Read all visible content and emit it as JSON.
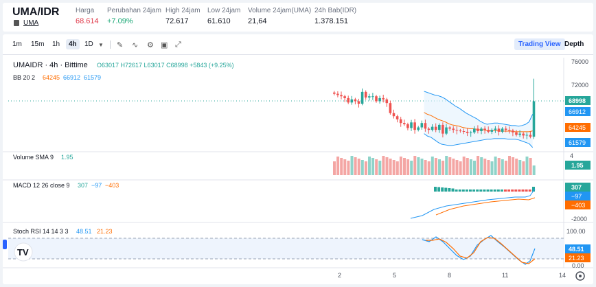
{
  "header": {
    "pair": "UMA/IDR",
    "sub": "UMA",
    "stats": [
      {
        "label": "Harga",
        "value": "68.614",
        "color": "#e0394a"
      },
      {
        "label": "Perubahan 24jam",
        "value": "+7.09%",
        "color": "#17a673"
      },
      {
        "label": "High 24jam",
        "value": "72.617",
        "color": "#131722"
      },
      {
        "label": "Low 24jam",
        "value": "61.610",
        "color": "#131722"
      },
      {
        "label": "Volume 24jam(UMA)",
        "value": "21,64",
        "color": "#131722"
      },
      {
        "label": "24h Bab(IDR)",
        "value": "1.378.151",
        "color": "#131722"
      }
    ]
  },
  "toolbar": {
    "timeframes": [
      "1m",
      "15m",
      "1h",
      "4h",
      "1D"
    ],
    "active": "4h",
    "views": [
      "Trading View",
      "Depth"
    ]
  },
  "legend": {
    "symbol": "UMAIDR · 4h · Bittime",
    "ohlc": "O63017 H72617 L63017 C68998 +5843 (+9.25%)",
    "bb_label": "BB 20 2",
    "bb_vals": [
      "64245",
      "66912",
      "61579"
    ],
    "vol_label": "Volume SMA 9",
    "vol_val": "1.95",
    "macd_label": "MACD 12 26 close 9",
    "macd_vals": [
      "307",
      "−97",
      "−403"
    ],
    "stoch_label": "Stoch RSI 14 14 3 3",
    "stoch_vals": [
      "48.51",
      "21.23"
    ]
  },
  "axis": {
    "price_ticks": [
      "76000",
      "72000"
    ],
    "vol_ticks": [
      "4"
    ],
    "macd_ticks": [
      "-2000"
    ],
    "stoch_ticks": [
      "100.00",
      "0.00"
    ],
    "x_ticks": [
      "2",
      "5",
      "8",
      "11",
      "14"
    ]
  },
  "badges": {
    "price": "68998",
    "bb_upper": "66912",
    "bb_mid": "64245",
    "bb_lower": "61579",
    "vol": "1.95",
    "macd": "307",
    "macd_signal": "−97",
    "macd_hist": "−403",
    "stoch_k": "48.51",
    "stoch_d": "21.23"
  },
  "colors": {
    "up": "#26a69a",
    "down": "#ef5350",
    "bb": "#2196f3",
    "orange": "#ff6d00",
    "accent": "#2962ff"
  },
  "chart_data": {
    "type": "candlestick",
    "closes": [
      70200,
      70000,
      69800,
      69500,
      68800,
      69300,
      69000,
      68600,
      70500,
      69600,
      69800,
      69800,
      69000,
      69500,
      69300,
      68700,
      67100,
      66600,
      66100,
      65500,
      65300,
      64700,
      65600,
      64400,
      64800,
      65500,
      64600,
      64400,
      64900,
      64400,
      65200,
      63800,
      64800,
      64600,
      64400,
      64300,
      64200,
      64100,
      63900,
      64000,
      64600,
      64200,
      64600,
      64400,
      64100,
      64400,
      64600,
      64100,
      64600,
      64400,
      64300,
      64000,
      63600,
      63800,
      63500,
      63600,
      63300,
      68998
    ],
    "bb_upper": [
      70600,
      70400,
      70200,
      70000,
      69900,
      69700,
      69400,
      69000,
      68600,
      68200,
      67900,
      67500,
      67100,
      66800,
      66500,
      66200,
      65800,
      65500,
      65300,
      65400,
      65500,
      65500,
      65400,
      65300,
      65200,
      65100,
      65100,
      65000,
      65100,
      65300,
      65700,
      66912
    ],
    "bb_mid": [
      67200,
      66900,
      66700,
      66400,
      66100,
      65900,
      65700,
      65400,
      65200,
      65100,
      65000,
      64800,
      64700,
      64600,
      64600,
      64500,
      64400,
      64400,
      64300,
      64300,
      64300,
      64300,
      64200,
      64200,
      64200,
      64200,
      64100,
      64100,
      64100,
      64100,
      64100,
      64245
    ],
    "bb_lower": [
      63800,
      63400,
      63200,
      62800,
      62400,
      62100,
      62000,
      61900,
      61900,
      62000,
      62100,
      62200,
      62300,
      62400,
      62500,
      62600,
      62700,
      62800,
      62900,
      62900,
      63000,
      63000,
      63000,
      63000,
      62900,
      62900,
      62900,
      62800,
      62600,
      62400,
      62200,
      61579
    ],
    "y_range": [
      61000,
      76000
    ]
  }
}
